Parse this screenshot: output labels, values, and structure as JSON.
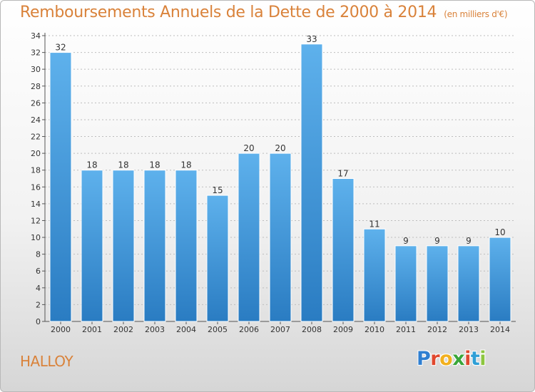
{
  "header": {
    "title": "Remboursements Annuels de la Dette de 2000 à 2014",
    "unit": "(en milliers d'€)"
  },
  "footer": {
    "commune": "HALLOY",
    "logo_letters": [
      "P",
      "r",
      "o",
      "x",
      "i",
      "t",
      "i"
    ],
    "logo_colors": [
      "#2f7fd1",
      "#e0482f",
      "#f2b01e",
      "#3aa63a",
      "#e0482f",
      "#2f9fd6",
      "#8cc63f"
    ]
  },
  "colors": {
    "bar_light": "#5aade8",
    "bar_dark": "#2a7fc4",
    "title": "#d9823a",
    "grid": "#bdbdbd"
  },
  "chart_data": {
    "type": "bar",
    "title": "Remboursements Annuels de la Dette de 2000 à 2014",
    "subtitle": "(en milliers d'€)",
    "xlabel": "",
    "ylabel": "",
    "categories": [
      "2000",
      "2001",
      "2002",
      "2003",
      "2004",
      "2005",
      "2006",
      "2007",
      "2008",
      "2009",
      "2010",
      "2011",
      "2012",
      "2013",
      "2014"
    ],
    "values": [
      32,
      18,
      18,
      18,
      18,
      15,
      20,
      20,
      33,
      17,
      11,
      9,
      9,
      9,
      10
    ],
    "ylim": [
      0,
      34
    ],
    "yticks": [
      0,
      2,
      4,
      6,
      8,
      10,
      12,
      14,
      16,
      18,
      20,
      22,
      24,
      26,
      28,
      30,
      32,
      34
    ],
    "grid": true,
    "legend": "none"
  }
}
